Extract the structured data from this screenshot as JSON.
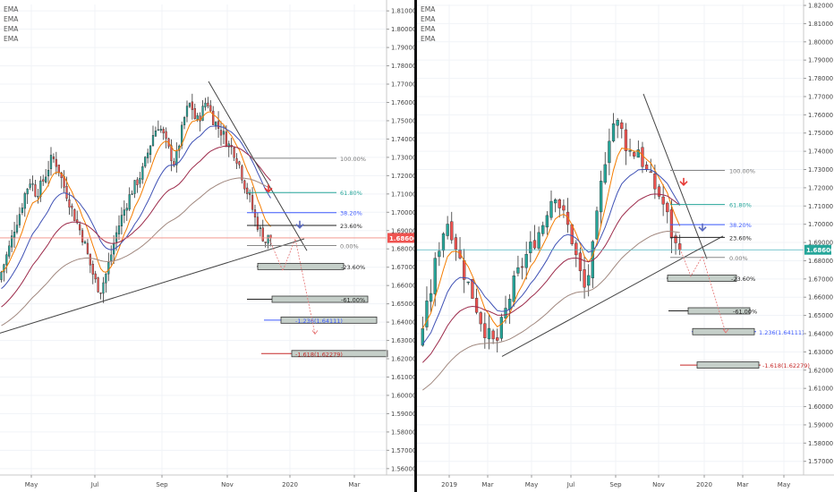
{
  "colors": {
    "bull": "#26a69a",
    "bear": "#ef5350",
    "wick": "#333333",
    "ema_fast": "#f57c00",
    "ema_mid": "#3f51b5",
    "ema_slow": "#9c2a4a",
    "ema_long": "#a1887f",
    "price_line": "#f28b82",
    "price_line_right": "#4fb3bf",
    "price_label_left": "#ef5350",
    "price_label_right": "#26a69a",
    "fib_gray": "#888888",
    "fib_teal": "#26a69a",
    "fib_blue": "#3d5afe",
    "fib_red": "#c62828",
    "fib_dark": "#222222",
    "arrow_red": "#e53935",
    "arrow_blue": "#5c6bc0"
  },
  "chart_data": [
    {
      "type": "candlestick",
      "indicators": [
        "EMA",
        "EMA",
        "EMA",
        "EMA"
      ],
      "x_labels": [
        "May",
        "Jul",
        "Sep",
        "Nov",
        "2020",
        "Mar"
      ],
      "y_ticks": [
        "1.81000",
        "1.80000",
        "1.79000",
        "1.78000",
        "1.77000",
        "1.76000",
        "1.75000",
        "1.74000",
        "1.73000",
        "1.72000",
        "1.71000",
        "1.70000",
        "1.69000",
        "1.68000",
        "1.67000",
        "1.66000",
        "1.65000",
        "1.64000",
        "1.63000",
        "1.62000",
        "1.61000",
        "1.60000",
        "1.59000",
        "1.58000",
        "1.57000",
        "1.56000"
      ],
      "ylim": [
        1.5565,
        1.8135
      ],
      "last_price": "1.68600",
      "last_price_value": 1.686,
      "price_path": [
        1.663,
        1.672,
        1.681,
        1.692,
        1.7,
        1.711,
        1.718,
        1.71,
        1.715,
        1.722,
        1.73,
        1.726,
        1.716,
        1.708,
        1.699,
        1.692,
        1.684,
        1.673,
        1.663,
        1.657,
        1.665,
        1.676,
        1.688,
        1.697,
        1.705,
        1.712,
        1.717,
        1.723,
        1.733,
        1.743,
        1.748,
        1.741,
        1.733,
        1.726,
        1.74,
        1.754,
        1.76,
        1.749,
        1.754,
        1.762,
        1.752,
        1.747,
        1.743,
        1.737,
        1.734,
        1.727,
        1.716,
        1.708,
        1.697,
        1.69,
        1.684,
        1.688
      ],
      "fib_levels": [
        {
          "label": "100.00%",
          "value": 1.7295,
          "color": "fib_gray"
        },
        {
          "label": "61.80%",
          "value": 1.7108,
          "color": "fib_teal"
        },
        {
          "label": "38.20%",
          "value": 1.6998,
          "color": "fib_blue"
        },
        {
          "label": "23.60%",
          "value": 1.6928,
          "color": "fib_dark"
        },
        {
          "label": "0.00%",
          "value": 1.6818,
          "color": "fib_gray"
        },
        {
          "label": "-23.60%",
          "value": 1.6704,
          "color": "fib_dark"
        },
        {
          "label": "-61.00%",
          "value": 1.6525,
          "color": "fib_dark"
        },
        {
          "label": "-1.236(1.64111)",
          "value": 1.6411,
          "color": "fib_blue"
        },
        {
          "label": "-1.618(1.62279)",
          "value": 1.6228,
          "color": "fib_red"
        }
      ]
    },
    {
      "type": "candlestick",
      "indicators": [
        "EMA",
        "EMA",
        "EMA",
        "EMA"
      ],
      "x_labels": [
        "2019",
        "Mar",
        "May",
        "Jul",
        "Sep",
        "Nov",
        "2020",
        "Mar",
        "May"
      ],
      "y_ticks": [
        "1.82000",
        "1.81000",
        "1.80000",
        "1.79000",
        "1.78000",
        "1.77000",
        "1.76000",
        "1.75000",
        "1.74000",
        "1.73000",
        "1.72000",
        "1.71000",
        "1.70000",
        "1.69000",
        "1.68000",
        "1.67000",
        "1.66000",
        "1.65000",
        "1.64000",
        "1.63000",
        "1.62000",
        "1.61000",
        "1.60000",
        "1.59000",
        "1.58000",
        "1.57000"
      ],
      "ylim": [
        1.5625,
        1.8205
      ],
      "last_price": "1.68600",
      "last_price_value": 1.686,
      "price_path": [
        1.633,
        1.648,
        1.662,
        1.682,
        1.695,
        1.702,
        1.692,
        1.68,
        1.67,
        1.662,
        1.652,
        1.643,
        1.638,
        1.633,
        1.645,
        1.656,
        1.667,
        1.675,
        1.682,
        1.688,
        1.694,
        1.701,
        1.712,
        1.718,
        1.708,
        1.7,
        1.69,
        1.675,
        1.664,
        1.678,
        1.702,
        1.728,
        1.748,
        1.757,
        1.753,
        1.743,
        1.738,
        1.742,
        1.731,
        1.725,
        1.719,
        1.713,
        1.703,
        1.689,
        1.686
      ],
      "fib_levels": [
        {
          "label": "100.00%",
          "value": 1.7295,
          "color": "fib_gray"
        },
        {
          "label": "61.80%",
          "value": 1.7108,
          "color": "fib_teal"
        },
        {
          "label": "38.20%",
          "value": 1.6998,
          "color": "fib_blue"
        },
        {
          "label": "23.60%",
          "value": 1.6928,
          "color": "fib_dark"
        },
        {
          "label": "0.00%",
          "value": 1.6818,
          "color": "fib_gray"
        },
        {
          "label": "-23.60%",
          "value": 1.6704,
          "color": "fib_dark"
        },
        {
          "label": "-61.00%",
          "value": 1.6525,
          "color": "fib_dark"
        },
        {
          "label": "1.236(1.64111)",
          "value": 1.6411,
          "color": "fib_blue"
        },
        {
          "label": "-1.618(1.62279)",
          "value": 1.6228,
          "color": "fib_red"
        }
      ]
    }
  ]
}
